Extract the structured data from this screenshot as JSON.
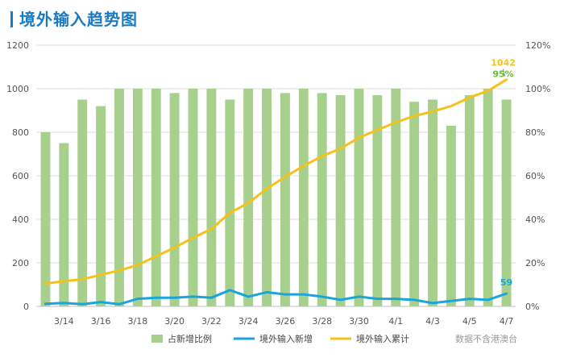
{
  "title": "境外输入趋势图",
  "source_note": "数据不含港澳台",
  "colors": {
    "title": "#1a7bc4",
    "bar": "#a8d08d",
    "daily_line": "#1aa6dc",
    "cumulative_line": "#f5c21b",
    "pct_label": "#70b63c",
    "grid": "#dcdcdc"
  },
  "chart_data": {
    "type": "bar+line",
    "grid": true,
    "legend_placement": "bottom",
    "categories": [
      "3/13",
      "3/14",
      "3/15",
      "3/16",
      "3/17",
      "3/18",
      "3/19",
      "3/20",
      "3/21",
      "3/22",
      "3/23",
      "3/24",
      "3/25",
      "3/26",
      "3/27",
      "3/28",
      "3/29",
      "3/30",
      "3/31",
      "4/1",
      "4/2",
      "4/3",
      "4/4",
      "4/5",
      "4/6",
      "4/7"
    ],
    "x_tick_labels": [
      "3/14",
      "3/16",
      "3/18",
      "3/20",
      "3/22",
      "3/24",
      "3/26",
      "3/28",
      "3/30",
      "4/1",
      "4/3",
      "4/5",
      "4/7"
    ],
    "y_left": {
      "min": 0,
      "max": 1200,
      "ticks": [
        0,
        200,
        400,
        600,
        800,
        1000,
        1200
      ]
    },
    "y_right": {
      "min": 0,
      "max": 120,
      "unit": "%",
      "ticks": [
        "0%",
        "20%",
        "40%",
        "60%",
        "80%",
        "100%",
        "120%"
      ]
    },
    "series": [
      {
        "name": "占新增比例",
        "kind": "bar",
        "axis": "right",
        "values": [
          80,
          75,
          95,
          92,
          100,
          100,
          100,
          98,
          100,
          100,
          95,
          100,
          100,
          98,
          100,
          98,
          97,
          100,
          97,
          100,
          94,
          95,
          83,
          97,
          100,
          95
        ]
      },
      {
        "name": "境外输入新增",
        "kind": "line",
        "axis": "left",
        "values": [
          12,
          16,
          10,
          20,
          10,
          35,
          40,
          40,
          45,
          40,
          75,
          45,
          65,
          55,
          55,
          45,
          30,
          45,
          35,
          35,
          30,
          15,
          25,
          35,
          30,
          59
        ]
      },
      {
        "name": "境外输入累计",
        "kind": "line",
        "axis": "left",
        "values": [
          105,
          115,
          125,
          145,
          165,
          190,
          230,
          270,
          315,
          355,
          430,
          475,
          540,
          595,
          645,
          690,
          725,
          775,
          810,
          845,
          875,
          895,
          920,
          960,
          990,
          1042
        ]
      }
    ],
    "annotations": [
      {
        "series": "境外输入累计",
        "category": "4/7",
        "text": "1042"
      },
      {
        "series": "占新增比例",
        "category": "4/7",
        "text": "95%"
      },
      {
        "series": "境外输入新增",
        "category": "4/7",
        "text": "59"
      }
    ]
  }
}
